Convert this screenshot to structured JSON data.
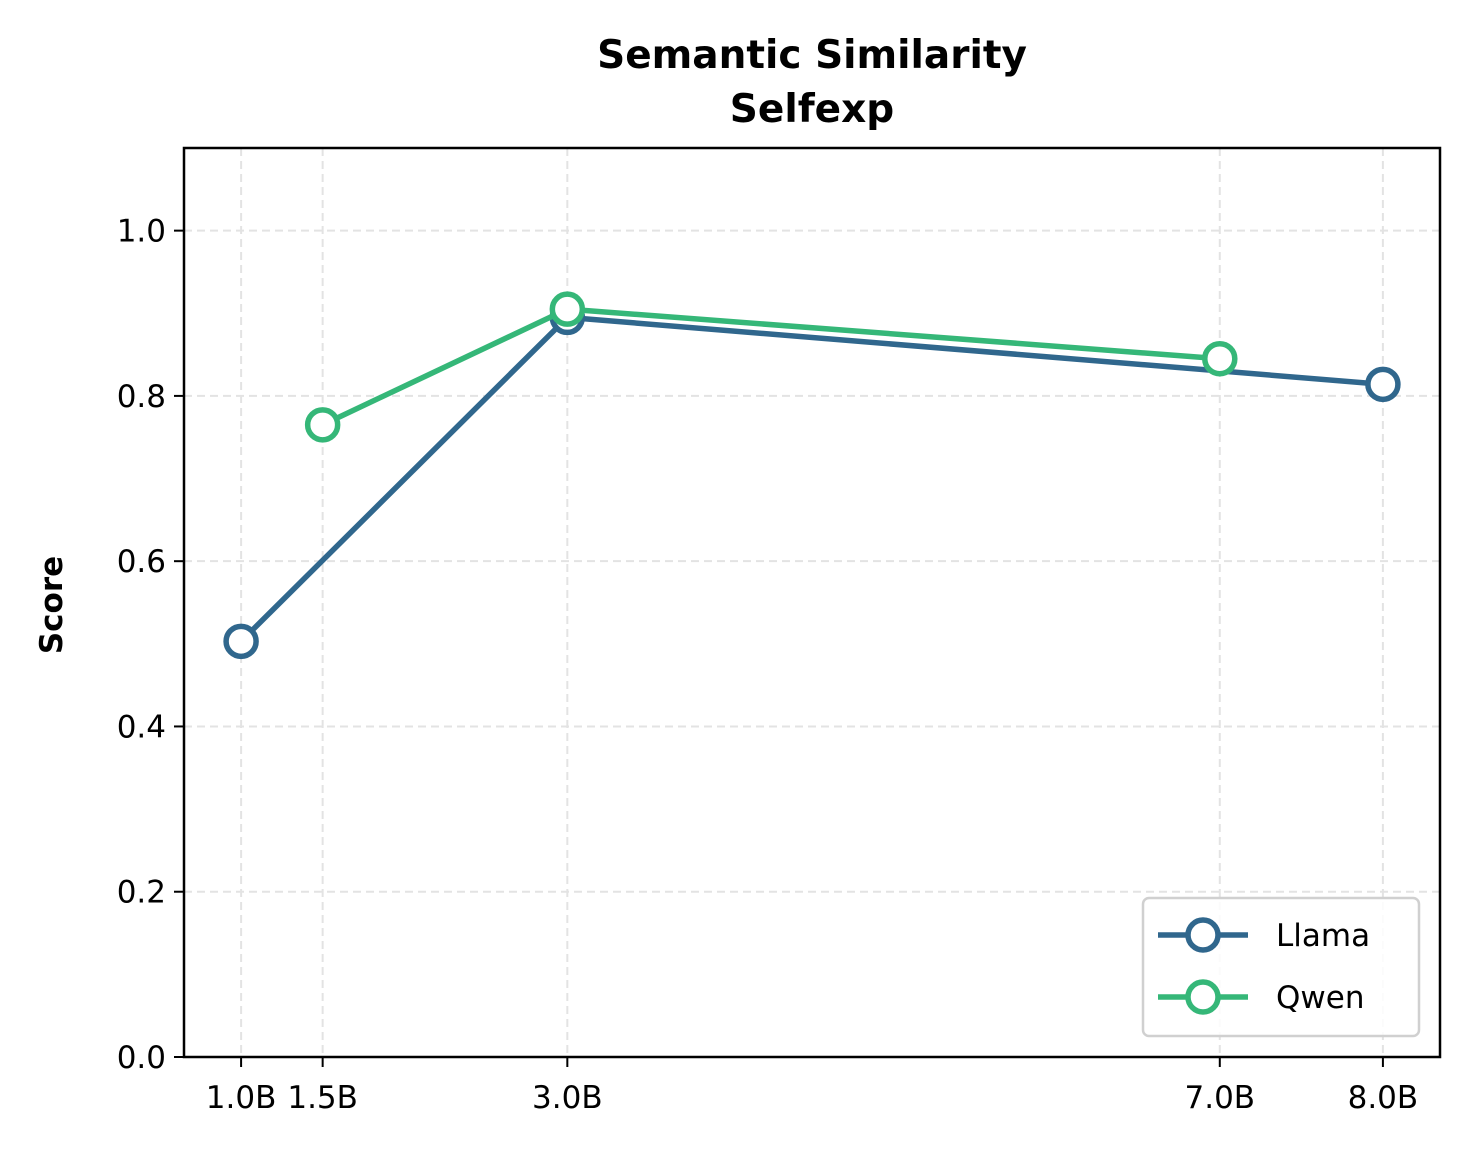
{
  "chart_data": {
    "type": "line",
    "title": [
      "Semantic Similarity",
      "Selfexp"
    ],
    "xlabel": "",
    "ylabel": "Score",
    "x": [
      1.0,
      1.5,
      3.0,
      7.0,
      8.0
    ],
    "xlim": [
      0.65,
      8.35
    ],
    "ylim": [
      0.0,
      1.1
    ],
    "xticks": [
      1.0,
      1.5,
      3.0,
      7.0,
      8.0
    ],
    "xtick_labels": [
      "1.0B",
      "1.5B",
      "3.0B",
      "7.0B",
      "8.0B"
    ],
    "yticks": [
      0.0,
      0.2,
      0.4,
      0.6,
      0.8,
      1.0
    ],
    "ytick_labels": [
      "0.0",
      "0.2",
      "0.4",
      "0.6",
      "0.8",
      "1.0"
    ],
    "grid": true,
    "legend_position": "lower-right",
    "series": [
      {
        "name": "Llama",
        "color": "#30678d",
        "points": [
          [
            1.0,
            0.503
          ],
          [
            3.0,
            0.895
          ],
          [
            8.0,
            0.814
          ]
        ]
      },
      {
        "name": "Qwen",
        "color": "#35b778",
        "points": [
          [
            1.5,
            0.765
          ],
          [
            3.0,
            0.905
          ],
          [
            7.0,
            0.845
          ]
        ]
      }
    ]
  }
}
